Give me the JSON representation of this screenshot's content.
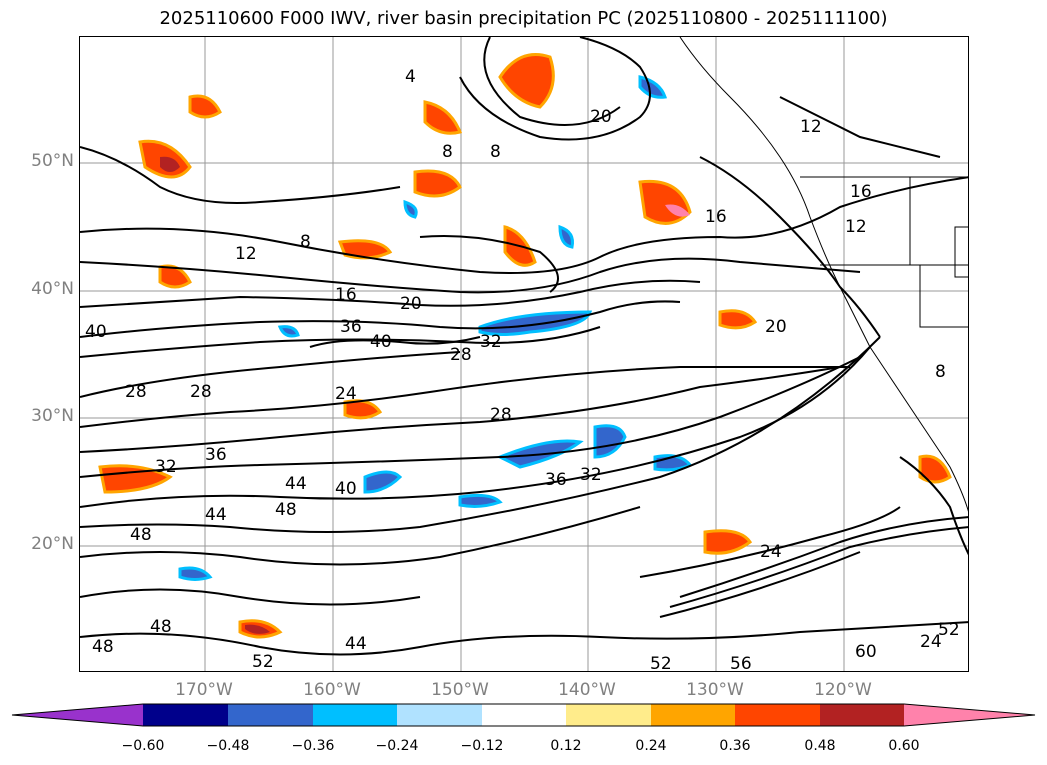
{
  "title": "2025110600 F000 IWV, river basin precipitation PC (2025110800 - 2025111100)",
  "map": {
    "lat_labels": [
      "50°N",
      "40°N",
      "30°N",
      "20°N"
    ],
    "lon_labels": [
      "170°W",
      "160°W",
      "150°W",
      "140°W",
      "130°W",
      "120°W"
    ],
    "contour_labels": [
      "4",
      "8",
      "8",
      "8",
      "8",
      "12",
      "12",
      "12",
      "16",
      "16",
      "16",
      "20",
      "20",
      "20",
      "24",
      "24",
      "24",
      "28",
      "28",
      "28",
      "28",
      "32",
      "32",
      "32",
      "36",
      "36",
      "36",
      "40",
      "40",
      "40",
      "44",
      "44",
      "44",
      "48",
      "48",
      "48",
      "48",
      "52",
      "52",
      "52",
      "56",
      "60"
    ]
  },
  "colorbar": {
    "tick_labels": [
      "−0.60",
      "−0.48",
      "−0.36",
      "−0.24",
      "−0.12",
      "0.12",
      "0.24",
      "0.36",
      "0.48",
      "0.60"
    ],
    "colors": [
      "#9932cc",
      "#00008b",
      "#3366cc",
      "#00bfff",
      "#b0e2ff",
      "#ffffff",
      "#ffec8b",
      "#ffa500",
      "#ff4500",
      "#b22222",
      "#ff82ab"
    ]
  }
}
